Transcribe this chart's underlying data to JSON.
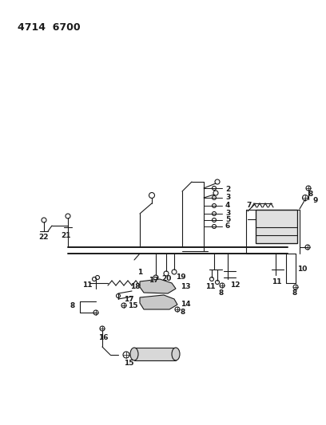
{
  "title": "4714  6700",
  "bg_color": "#ffffff",
  "line_color": "#1a1a1a",
  "text_color": "#1a1a1a",
  "fig_width": 4.08,
  "fig_height": 5.33,
  "dpi": 100
}
